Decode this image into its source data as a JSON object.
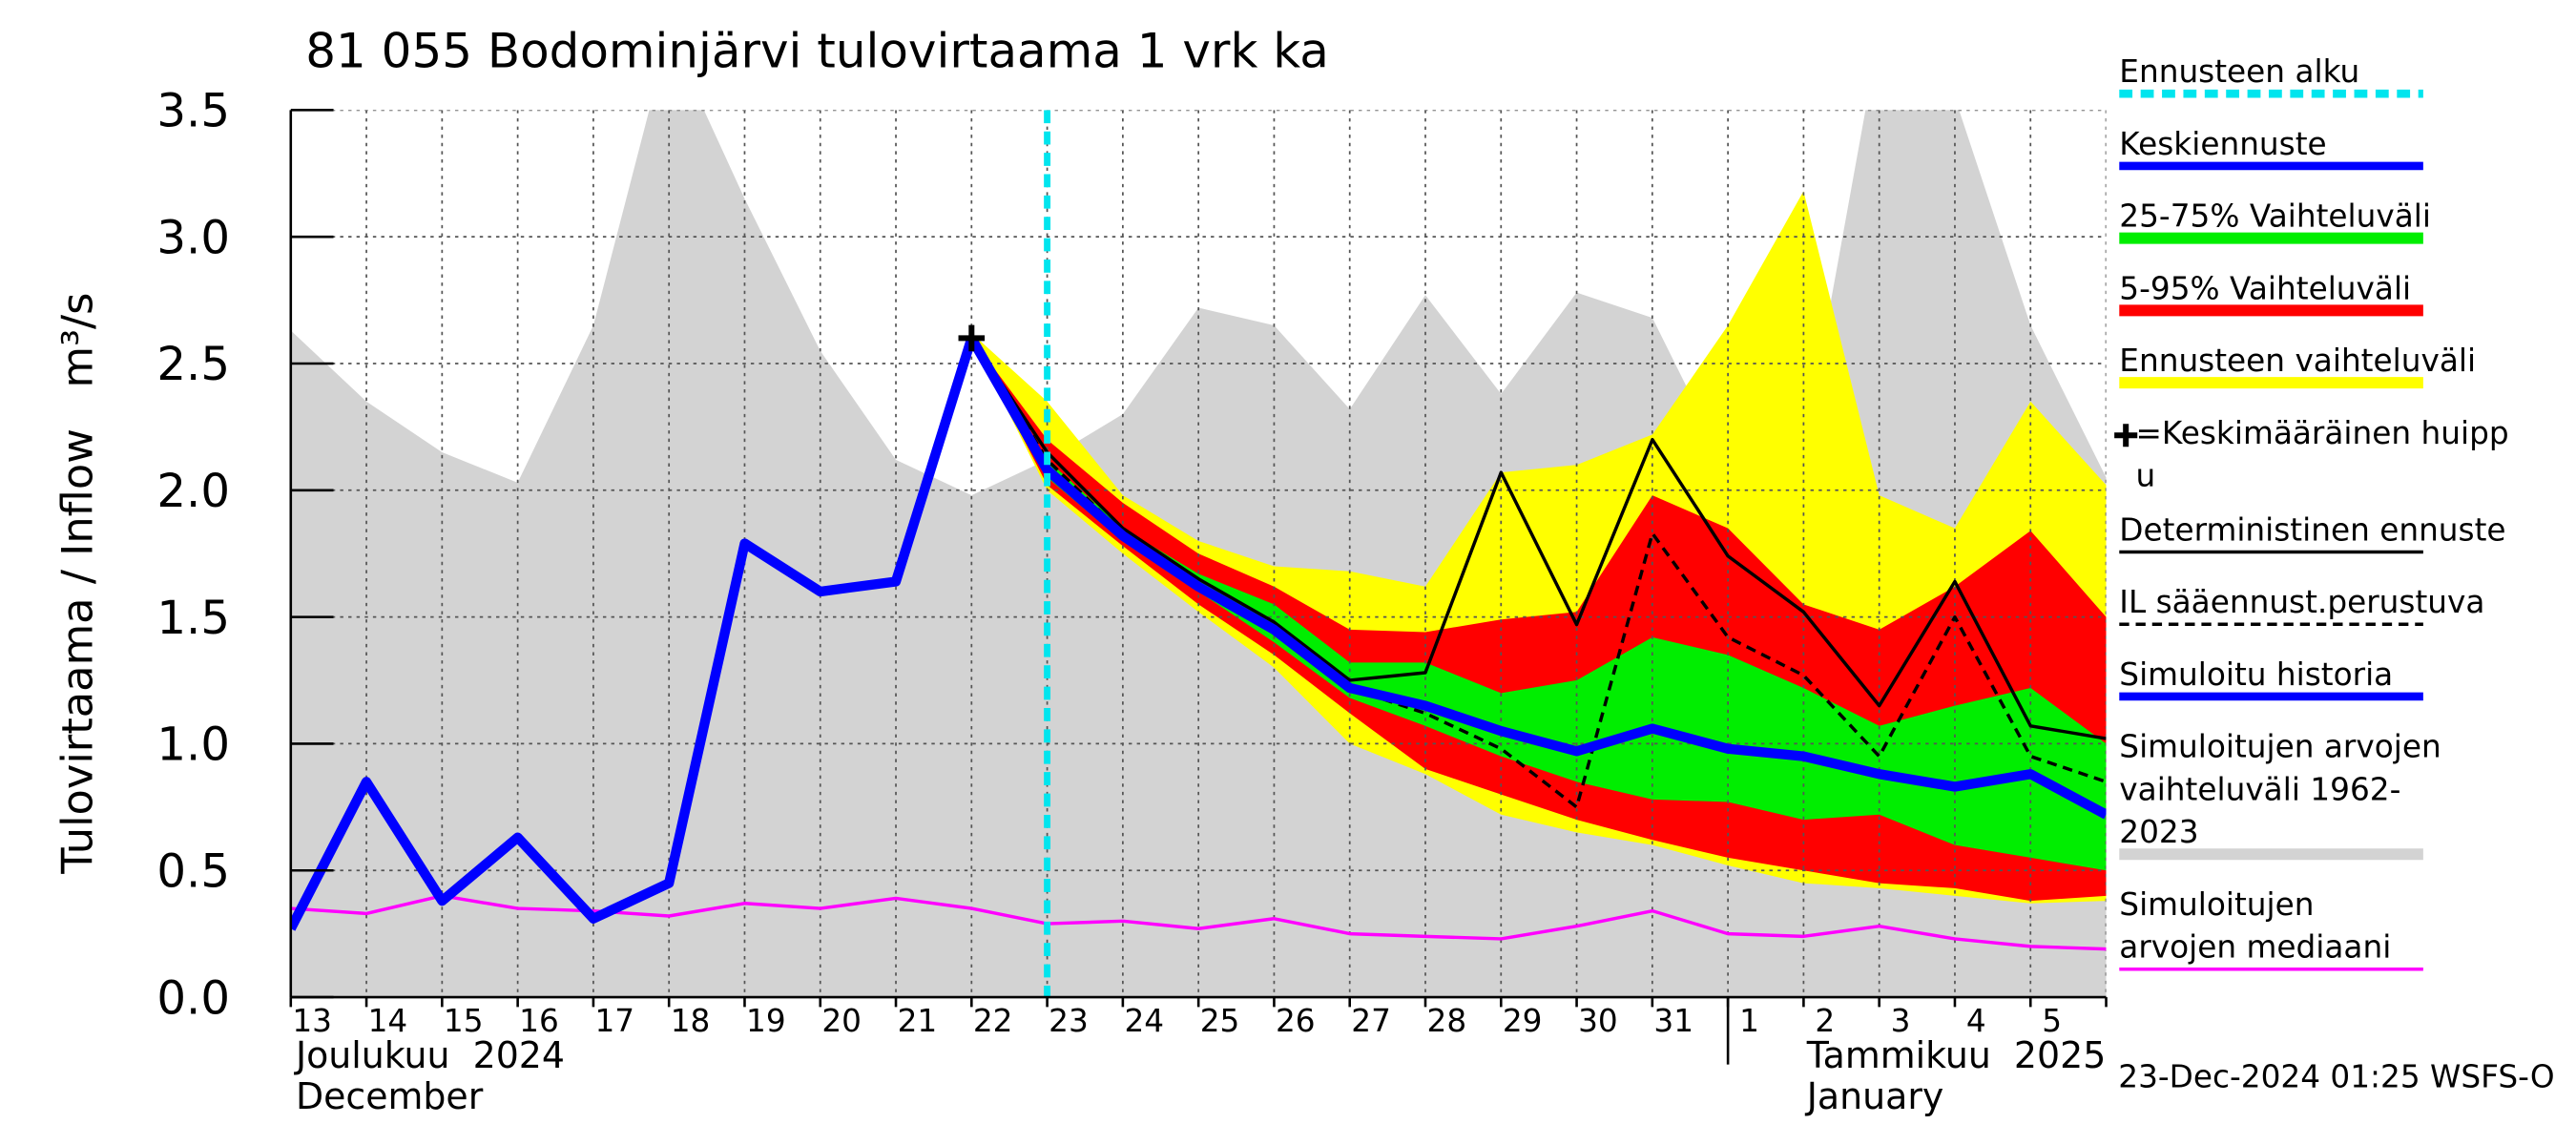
{
  "chart_data": {
    "type": "line",
    "title": "81 055 Bodominjärvi tulovirtaama 1 vrk ka",
    "y_label": "Tulovirtaama / Inflow   m³/s",
    "timestamp": "23-Dec-2024 01:25 WSFS-O",
    "categories": [
      "13",
      "14",
      "15",
      "16",
      "17",
      "18",
      "19",
      "20",
      "21",
      "22",
      "23",
      "24",
      "25",
      "26",
      "27",
      "28",
      "29",
      "30",
      "31",
      "1",
      "2",
      "3",
      "4",
      "5",
      null
    ],
    "months": [
      {
        "start": "13",
        "labels": [
          "Joulukuu  2024",
          "December"
        ]
      },
      {
        "start": "1",
        "labels": [
          "Tammikuu  2025",
          "January"
        ]
      }
    ],
    "ylim": [
      0,
      3.5
    ],
    "yticks": [
      {
        "value": 0,
        "label": "0.0"
      },
      0.5,
      {
        "value": 1,
        "label": "1.0"
      },
      1.5,
      {
        "value": 2,
        "label": "2.0"
      },
      2.5,
      {
        "value": 3,
        "label": "3.0"
      },
      3.5
    ],
    "grid": true,
    "forecast_start": "23",
    "forecast_start_label": "Ennusteen alku",
    "forecast_start_color": "#00e5ee",
    "peak": {
      "name": "=Keskimääräinen huippu",
      "category": "22",
      "value": 2.6
    },
    "series": [
      {
        "name": "Keskiennuste",
        "color": "#0000ff",
        "style": "line",
        "width": 6,
        "values": [
          null,
          null,
          null,
          null,
          null,
          null,
          null,
          null,
          null,
          2.6,
          2.08,
          1.82,
          1.62,
          1.45,
          1.22,
          1.15,
          1.05,
          0.97,
          1.06,
          0.98,
          0.95,
          0.88,
          0.83,
          0.88,
          0.72
        ]
      },
      {
        "name": "25-75% Vaihteluväli",
        "color": "#00ee00",
        "style": "band",
        "values": [
          null,
          null,
          null,
          null,
          null,
          null,
          null,
          null,
          null,
          2.6,
          2.12,
          1.85,
          1.67,
          1.55,
          1.32,
          1.32,
          1.2,
          1.25,
          1.42,
          1.35,
          1.22,
          1.07,
          1.15,
          1.22,
          1.0
        ],
        "low": [
          null,
          null,
          null,
          null,
          null,
          null,
          null,
          null,
          null,
          2.6,
          2.05,
          1.8,
          1.6,
          1.4,
          1.18,
          1.07,
          0.95,
          0.85,
          0.78,
          0.77,
          0.7,
          0.72,
          0.6,
          0.55,
          0.5
        ]
      },
      {
        "name": "5-95% Vaihteluväli",
        "color": "#ff0000",
        "style": "band",
        "values": [
          null,
          null,
          null,
          null,
          null,
          null,
          null,
          null,
          null,
          2.6,
          2.2,
          1.95,
          1.75,
          1.62,
          1.45,
          1.44,
          1.49,
          1.52,
          1.98,
          1.85,
          1.55,
          1.45,
          1.62,
          1.84,
          1.5
        ],
        "low": [
          null,
          null,
          null,
          null,
          null,
          null,
          null,
          null,
          null,
          2.6,
          2.02,
          1.78,
          1.55,
          1.35,
          1.12,
          0.9,
          0.8,
          0.7,
          0.62,
          0.55,
          0.5,
          0.45,
          0.43,
          0.38,
          0.4
        ]
      },
      {
        "name": "Ennusteen vaihteluväli",
        "color": "#ffff00",
        "style": "band",
        "values": [
          null,
          null,
          null,
          null,
          null,
          null,
          null,
          null,
          null,
          2.62,
          2.35,
          1.98,
          1.8,
          1.7,
          1.68,
          1.62,
          2.07,
          2.1,
          2.22,
          2.65,
          3.18,
          1.98,
          1.85,
          2.35,
          2.02
        ],
        "low": [
          null,
          null,
          null,
          null,
          null,
          null,
          null,
          null,
          null,
          2.6,
          2.0,
          1.75,
          1.52,
          1.3,
          1.0,
          0.88,
          0.72,
          0.65,
          0.6,
          0.52,
          0.45,
          0.43,
          0.4,
          0.37,
          0.38
        ]
      },
      {
        "name": "Deterministinen ennuste",
        "color": "#000000",
        "style": "line",
        "width": 2,
        "values": [
          null,
          null,
          null,
          null,
          null,
          null,
          null,
          null,
          null,
          2.6,
          2.15,
          1.85,
          1.65,
          1.48,
          1.25,
          1.28,
          2.07,
          1.47,
          2.2,
          1.74,
          1.52,
          1.15,
          1.64,
          1.07,
          1.02
        ]
      },
      {
        "name": "IL sääennust.perustuva",
        "color": "#000000",
        "style": "dashed",
        "width": 2,
        "values": [
          null,
          null,
          null,
          null,
          null,
          null,
          null,
          null,
          null,
          2.6,
          2.12,
          1.83,
          1.63,
          1.45,
          1.22,
          1.12,
          0.98,
          0.75,
          1.83,
          1.42,
          1.27,
          0.95,
          1.5,
          0.95,
          0.85
        ]
      },
      {
        "name": "Simuloitu historia",
        "color": "#0000ff",
        "style": "line",
        "width": 6,
        "values": [
          0.27,
          0.85,
          0.38,
          0.63,
          0.31,
          0.45,
          1.79,
          1.6,
          1.64,
          2.6,
          null,
          null,
          null,
          null,
          null,
          null,
          null,
          null,
          null,
          null,
          null,
          null,
          null,
          null,
          null
        ]
      },
      {
        "name": "Simuloitujen arvojen vaihteluväli 1962-2023",
        "color": "#d3d3d3",
        "style": "band",
        "values": [
          2.63,
          2.35,
          2.15,
          2.03,
          2.65,
          3.8,
          3.15,
          2.55,
          2.12,
          1.98,
          2.12,
          2.3,
          2.72,
          2.65,
          2.32,
          2.77,
          2.38,
          2.78,
          2.68,
          2.08,
          2.15,
          3.8,
          3.55,
          2.65,
          2.05
        ],
        "low": [
          0,
          0,
          0,
          0,
          0,
          0,
          0,
          0,
          0,
          0,
          0,
          0,
          0,
          0,
          0,
          0,
          0,
          0,
          0,
          0,
          0,
          0,
          0,
          0,
          0
        ]
      },
      {
        "name": "Simuloitujen arvojen mediaani",
        "color": "#ff00ff",
        "style": "line",
        "width": 2,
        "values": [
          0.35,
          0.33,
          0.4,
          0.35,
          0.34,
          0.32,
          0.37,
          0.35,
          0.39,
          0.35,
          0.29,
          0.3,
          0.27,
          0.31,
          0.25,
          0.24,
          0.23,
          0.28,
          0.34,
          0.25,
          0.24,
          0.28,
          0.23,
          0.2,
          0.19
        ]
      }
    ]
  }
}
